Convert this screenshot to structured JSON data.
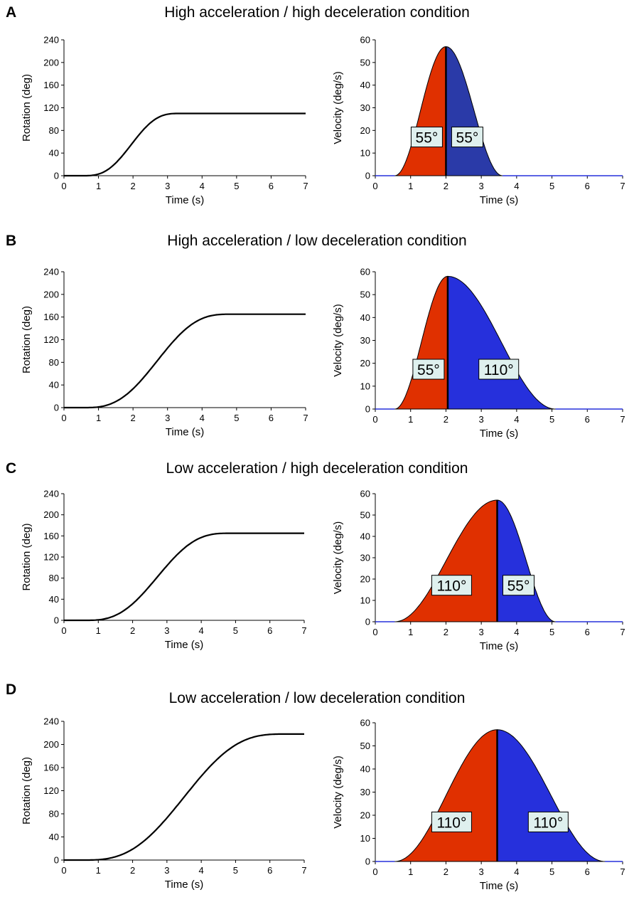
{
  "chart_data": [
    {
      "panel": "A",
      "title": "High acceleration / high deceleration condition",
      "rotation": {
        "type": "line",
        "xlabel": "Time (s)",
        "ylabel": "Rotation (deg)",
        "xlim": [
          0,
          7
        ],
        "ylim": [
          0,
          240
        ],
        "xticks": [
          "0",
          "1",
          "2",
          "3",
          "4",
          "5",
          "6",
          "7"
        ],
        "yticks": [
          "0",
          "40",
          "80",
          "120",
          "160",
          "200",
          "240"
        ],
        "start": 0.55,
        "end": 3.35,
        "final": 110
      },
      "velocity": {
        "type": "area",
        "xlabel": "Time (s)",
        "ylabel": "Velocity (deg/s)",
        "xlim": [
          0,
          7
        ],
        "ylim": [
          0,
          60
        ],
        "xticks": [
          "0",
          "1",
          "2",
          "3",
          "4",
          "5",
          "6",
          "7"
        ],
        "yticks": [
          "0",
          "10",
          "20",
          "30",
          "40",
          "50",
          "60"
        ],
        "start": 0.55,
        "peak_time": 2.0,
        "end": 3.6,
        "peak": 57,
        "accel_label": "55°",
        "decel_label": "55°",
        "accel_color": "#e03000",
        "decel_color": "#2a3aa8"
      }
    },
    {
      "panel": "B",
      "title": "High acceleration / low deceleration condition",
      "rotation": {
        "type": "line",
        "xlabel": "Time (s)",
        "ylabel": "Rotation (deg)",
        "xlim": [
          0,
          7
        ],
        "ylim": [
          0,
          240
        ],
        "xticks": [
          "0",
          "1",
          "2",
          "3",
          "4",
          "5",
          "6",
          "7"
        ],
        "yticks": [
          "0",
          "40",
          "80",
          "120",
          "160",
          "200",
          "240"
        ],
        "start": 0.55,
        "end": 4.85,
        "final": 165
      },
      "velocity": {
        "type": "area",
        "xlabel": "Time (s)",
        "ylabel": "Velocity (deg/s)",
        "xlim": [
          0,
          7
        ],
        "ylim": [
          0,
          60
        ],
        "xticks": [
          "0",
          "1",
          "2",
          "3",
          "4",
          "5",
          "6",
          "7"
        ],
        "yticks": [
          "0",
          "10",
          "20",
          "30",
          "40",
          "50",
          "60"
        ],
        "start": 0.55,
        "peak_time": 2.05,
        "end": 5.1,
        "peak": 58,
        "accel_label": "55°",
        "decel_label": "110°",
        "accel_color": "#e03000",
        "decel_color": "#2630dc"
      }
    },
    {
      "panel": "C",
      "title": "Low acceleration / high deceleration condition",
      "rotation": {
        "type": "line",
        "xlabel": "Time (s)",
        "ylabel": "Rotation (deg)",
        "xlim": [
          0,
          7
        ],
        "ylim": [
          0,
          240
        ],
        "xticks": [
          "0",
          "1",
          "2",
          "3",
          "4",
          "5",
          "6",
          "7"
        ],
        "yticks": [
          "0",
          "40",
          "80",
          "120",
          "160",
          "200",
          "240"
        ],
        "start": 0.6,
        "end": 4.85,
        "final": 165
      },
      "velocity": {
        "type": "area",
        "xlabel": "Time (s)",
        "ylabel": "Velocity (deg/s)",
        "xlim": [
          0,
          7
        ],
        "ylim": [
          0,
          60
        ],
        "xticks": [
          "0",
          "1",
          "2",
          "3",
          "4",
          "5",
          "6",
          "7"
        ],
        "yticks": [
          "0",
          "10",
          "20",
          "30",
          "40",
          "50",
          "60"
        ],
        "start": 0.55,
        "peak_time": 3.45,
        "end": 5.1,
        "peak": 57,
        "accel_label": "110°",
        "decel_label": "55°",
        "accel_color": "#e03000",
        "decel_color": "#2630dc"
      }
    },
    {
      "panel": "D",
      "title": "Low acceleration / low deceleration condition",
      "rotation": {
        "type": "line",
        "xlabel": "Time (s)",
        "ylabel": "Rotation (deg)",
        "xlim": [
          0,
          7
        ],
        "ylim": [
          0,
          240
        ],
        "xticks": [
          "0",
          "1",
          "2",
          "3",
          "4",
          "5",
          "6",
          "7"
        ],
        "yticks": [
          "0",
          "40",
          "80",
          "120",
          "160",
          "200",
          "240"
        ],
        "start": 0.55,
        "end": 6.45,
        "final": 218
      },
      "velocity": {
        "type": "area",
        "xlabel": "Time (s)",
        "ylabel": "Velocity (deg/s)",
        "xlim": [
          0,
          7
        ],
        "ylim": [
          0,
          60
        ],
        "xticks": [
          "0",
          "1",
          "2",
          "3",
          "4",
          "5",
          "6",
          "7"
        ],
        "yticks": [
          "0",
          "10",
          "20",
          "30",
          "40",
          "50",
          "60"
        ],
        "start": 0.55,
        "peak_time": 3.45,
        "end": 6.5,
        "peak": 57,
        "accel_label": "110°",
        "decel_label": "110°",
        "accel_color": "#e03000",
        "decel_color": "#2630dc"
      }
    }
  ]
}
